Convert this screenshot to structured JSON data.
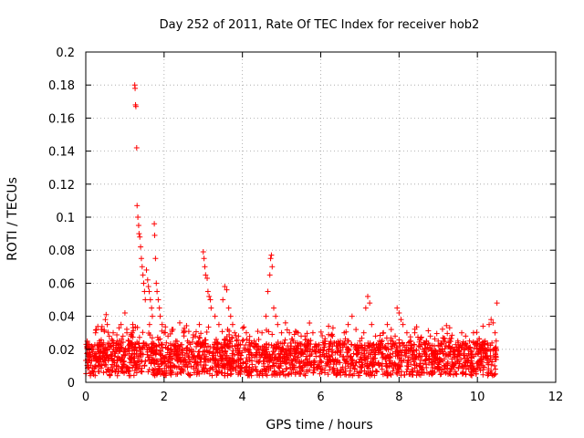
{
  "chart_data": {
    "type": "scatter",
    "title": "Day 252 of 2011, Rate Of TEC Index for receiver hob2",
    "xlabel": "GPS time / hours",
    "ylabel": "ROTI / TECUs",
    "xlim": [
      0,
      12
    ],
    "ylim": [
      0,
      0.2
    ],
    "xticks": [
      0,
      2,
      4,
      6,
      8,
      10,
      12
    ],
    "yticks": [
      0,
      0.02,
      0.04,
      0.06,
      0.08,
      0.1,
      0.12,
      0.14,
      0.16,
      0.18,
      0.2
    ],
    "xtick_labels": [
      "0",
      "2",
      "4",
      "6",
      "8",
      "10",
      "12"
    ],
    "ytick_labels": [
      "0",
      "0.02",
      "0.04",
      "0.06",
      "0.08",
      "0.1",
      "0.12",
      "0.14",
      "0.16",
      "0.18",
      "0.2"
    ],
    "grid": true,
    "marker": "+",
    "color": "#ff0000",
    "series": [
      {
        "name": "ROTI",
        "points": [
          [
            0.05,
            0.012
          ],
          [
            0.1,
            0.018
          ],
          [
            0.15,
            0.022
          ],
          [
            0.2,
            0.015
          ],
          [
            0.25,
            0.03
          ],
          [
            0.3,
            0.02
          ],
          [
            0.35,
            0.025
          ],
          [
            0.4,
            0.032
          ],
          [
            0.45,
            0.018
          ],
          [
            0.5,
            0.038
          ],
          [
            0.52,
            0.041
          ],
          [
            0.55,
            0.035
          ],
          [
            0.6,
            0.028
          ],
          [
            0.65,
            0.022
          ],
          [
            0.7,
            0.03
          ],
          [
            0.75,
            0.02
          ],
          [
            0.8,
            0.025
          ],
          [
            0.85,
            0.033
          ],
          [
            0.9,
            0.035
          ],
          [
            0.95,
            0.028
          ],
          [
            1.0,
            0.042
          ],
          [
            1.05,
            0.03
          ],
          [
            1.1,
            0.025
          ],
          [
            1.15,
            0.028
          ],
          [
            1.2,
            0.035
          ],
          [
            1.25,
            0.18
          ],
          [
            1.26,
            0.178
          ],
          [
            1.27,
            0.168
          ],
          [
            1.28,
            0.167
          ],
          [
            1.3,
            0.142
          ],
          [
            1.31,
            0.107
          ],
          [
            1.33,
            0.1
          ],
          [
            1.35,
            0.095
          ],
          [
            1.36,
            0.09
          ],
          [
            1.38,
            0.088
          ],
          [
            1.4,
            0.082
          ],
          [
            1.42,
            0.075
          ],
          [
            1.44,
            0.07
          ],
          [
            1.46,
            0.065
          ],
          [
            1.48,
            0.06
          ],
          [
            1.5,
            0.055
          ],
          [
            1.52,
            0.05
          ],
          [
            1.55,
            0.068
          ],
          [
            1.58,
            0.062
          ],
          [
            1.6,
            0.058
          ],
          [
            1.62,
            0.055
          ],
          [
            1.65,
            0.05
          ],
          [
            1.68,
            0.045
          ],
          [
            1.7,
            0.04
          ],
          [
            1.75,
            0.096
          ],
          [
            1.76,
            0.089
          ],
          [
            1.78,
            0.075
          ],
          [
            1.8,
            0.06
          ],
          [
            1.82,
            0.055
          ],
          [
            1.85,
            0.05
          ],
          [
            1.88,
            0.045
          ],
          [
            1.9,
            0.04
          ],
          [
            1.95,
            0.035
          ],
          [
            2.0,
            0.03
          ],
          [
            2.1,
            0.028
          ],
          [
            2.2,
            0.032
          ],
          [
            2.3,
            0.025
          ],
          [
            2.4,
            0.036
          ],
          [
            2.5,
            0.03
          ],
          [
            2.6,
            0.025
          ],
          [
            2.7,
            0.02
          ],
          [
            2.8,
            0.028
          ],
          [
            2.9,
            0.035
          ],
          [
            3.0,
            0.079
          ],
          [
            3.02,
            0.075
          ],
          [
            3.04,
            0.07
          ],
          [
            3.06,
            0.065
          ],
          [
            3.1,
            0.063
          ],
          [
            3.12,
            0.055
          ],
          [
            3.15,
            0.052
          ],
          [
            3.18,
            0.05
          ],
          [
            3.2,
            0.045
          ],
          [
            3.3,
            0.04
          ],
          [
            3.4,
            0.035
          ],
          [
            3.5,
            0.05
          ],
          [
            3.55,
            0.058
          ],
          [
            3.6,
            0.056
          ],
          [
            3.65,
            0.045
          ],
          [
            3.7,
            0.04
          ],
          [
            3.75,
            0.035
          ],
          [
            3.8,
            0.03
          ],
          [
            3.9,
            0.028
          ],
          [
            4.0,
            0.025
          ],
          [
            4.1,
            0.03
          ],
          [
            4.2,
            0.022
          ],
          [
            4.3,
            0.025
          ],
          [
            4.4,
            0.02
          ],
          [
            4.5,
            0.03
          ],
          [
            4.6,
            0.04
          ],
          [
            4.65,
            0.055
          ],
          [
            4.7,
            0.065
          ],
          [
            4.72,
            0.075
          ],
          [
            4.74,
            0.077
          ],
          [
            4.76,
            0.07
          ],
          [
            4.8,
            0.045
          ],
          [
            4.85,
            0.04
          ],
          [
            4.9,
            0.035
          ],
          [
            5.0,
            0.03
          ],
          [
            5.1,
            0.036
          ],
          [
            5.2,
            0.03
          ],
          [
            5.3,
            0.025
          ],
          [
            5.4,
            0.02
          ],
          [
            5.5,
            0.028
          ],
          [
            5.6,
            0.022
          ],
          [
            5.7,
            0.025
          ],
          [
            5.8,
            0.03
          ],
          [
            5.9,
            0.022
          ],
          [
            6.0,
            0.02
          ],
          [
            6.1,
            0.025
          ],
          [
            6.2,
            0.034
          ],
          [
            6.3,
            0.028
          ],
          [
            6.4,
            0.022
          ],
          [
            6.5,
            0.025
          ],
          [
            6.6,
            0.03
          ],
          [
            6.7,
            0.035
          ],
          [
            6.8,
            0.04
          ],
          [
            6.9,
            0.032
          ],
          [
            7.0,
            0.025
          ],
          [
            7.1,
            0.03
          ],
          [
            7.15,
            0.045
          ],
          [
            7.2,
            0.052
          ],
          [
            7.25,
            0.048
          ],
          [
            7.3,
            0.035
          ],
          [
            7.4,
            0.028
          ],
          [
            7.5,
            0.025
          ],
          [
            7.6,
            0.03
          ],
          [
            7.7,
            0.035
          ],
          [
            7.8,
            0.032
          ],
          [
            7.9,
            0.028
          ],
          [
            7.95,
            0.045
          ],
          [
            8.0,
            0.042
          ],
          [
            8.05,
            0.038
          ],
          [
            8.1,
            0.035
          ],
          [
            8.2,
            0.03
          ],
          [
            8.3,
            0.025
          ],
          [
            8.4,
            0.03
          ],
          [
            8.5,
            0.022
          ],
          [
            8.6,
            0.02
          ],
          [
            8.7,
            0.025
          ],
          [
            8.8,
            0.028
          ],
          [
            8.9,
            0.022
          ],
          [
            9.0,
            0.025
          ],
          [
            9.1,
            0.02
          ],
          [
            9.2,
            0.022
          ],
          [
            9.3,
            0.025
          ],
          [
            9.4,
            0.02
          ],
          [
            9.5,
            0.025
          ],
          [
            9.6,
            0.03
          ],
          [
            9.7,
            0.028
          ],
          [
            9.8,
            0.025
          ],
          [
            9.9,
            0.03
          ],
          [
            10.0,
            0.025
          ],
          [
            10.1,
            0.02
          ],
          [
            10.2,
            0.025
          ],
          [
            10.3,
            0.035
          ],
          [
            10.35,
            0.038
          ],
          [
            10.4,
            0.036
          ],
          [
            10.45,
            0.03
          ],
          [
            10.5,
            0.048
          ],
          [
            10.48,
            0.025
          ],
          [
            10.44,
            0.01
          ],
          [
            10.46,
            0.008
          ]
        ]
      }
    ]
  }
}
